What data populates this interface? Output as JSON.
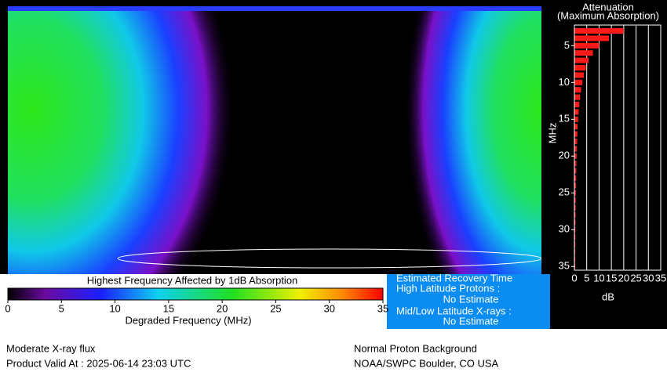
{
  "map": {
    "top_band_color": "#2a3cff"
  },
  "colorbar": {
    "title": "Highest Frequency Affected by 1dB Absorption",
    "label": "Degraded Frequency (MHz)",
    "range": [
      0,
      35
    ],
    "ticks": [
      0,
      5,
      10,
      15,
      20,
      25,
      30,
      35
    ]
  },
  "chart_data": {
    "type": "hbar",
    "title": "Attenuation",
    "subtitle": "(Maximum Absorption)",
    "ylabel": "MHz",
    "xlabel": "dB",
    "color": "#ff1a1a",
    "y": [
      3,
      4,
      5,
      6,
      7,
      8,
      9,
      10,
      11,
      12,
      13,
      14,
      15,
      16,
      17,
      18,
      19,
      20,
      21,
      22,
      23,
      24,
      25,
      26,
      27,
      28,
      29,
      30,
      31,
      32,
      33,
      34,
      35
    ],
    "values": [
      20,
      14,
      10,
      7.5,
      5.8,
      4.6,
      3.8,
      3.2,
      2.7,
      2.3,
      2.0,
      1.7,
      1.5,
      1.3,
      1.2,
      1.1,
      1.0,
      0.9,
      0.8,
      0.75,
      0.7,
      0.65,
      0.6,
      0.55,
      0.5,
      0.47,
      0.44,
      0.41,
      0.38,
      0.36,
      0.34,
      0.32,
      0.3
    ],
    "xlim": [
      0,
      35
    ],
    "xticks": [
      0,
      5,
      10,
      15,
      20,
      25,
      30,
      35
    ],
    "ylim": [
      2.2,
      35.5
    ],
    "yticks": [
      5,
      10,
      15,
      20,
      25,
      30,
      35
    ],
    "grid": true
  },
  "recovery": {
    "title": "Estimated Recovery Time",
    "high_label": "High Latitude Protons :",
    "high_value": "No Estimate",
    "low_label": "Mid/Low Latitude X-rays :",
    "low_value": "No Estimate"
  },
  "footer": {
    "left1": "Moderate X-ray flux",
    "left2": "Product Valid At : 2025-06-14 23:03 UTC",
    "right1": "Normal Proton Background",
    "right2": "NOAA/SWPC Boulder, CO USA"
  }
}
